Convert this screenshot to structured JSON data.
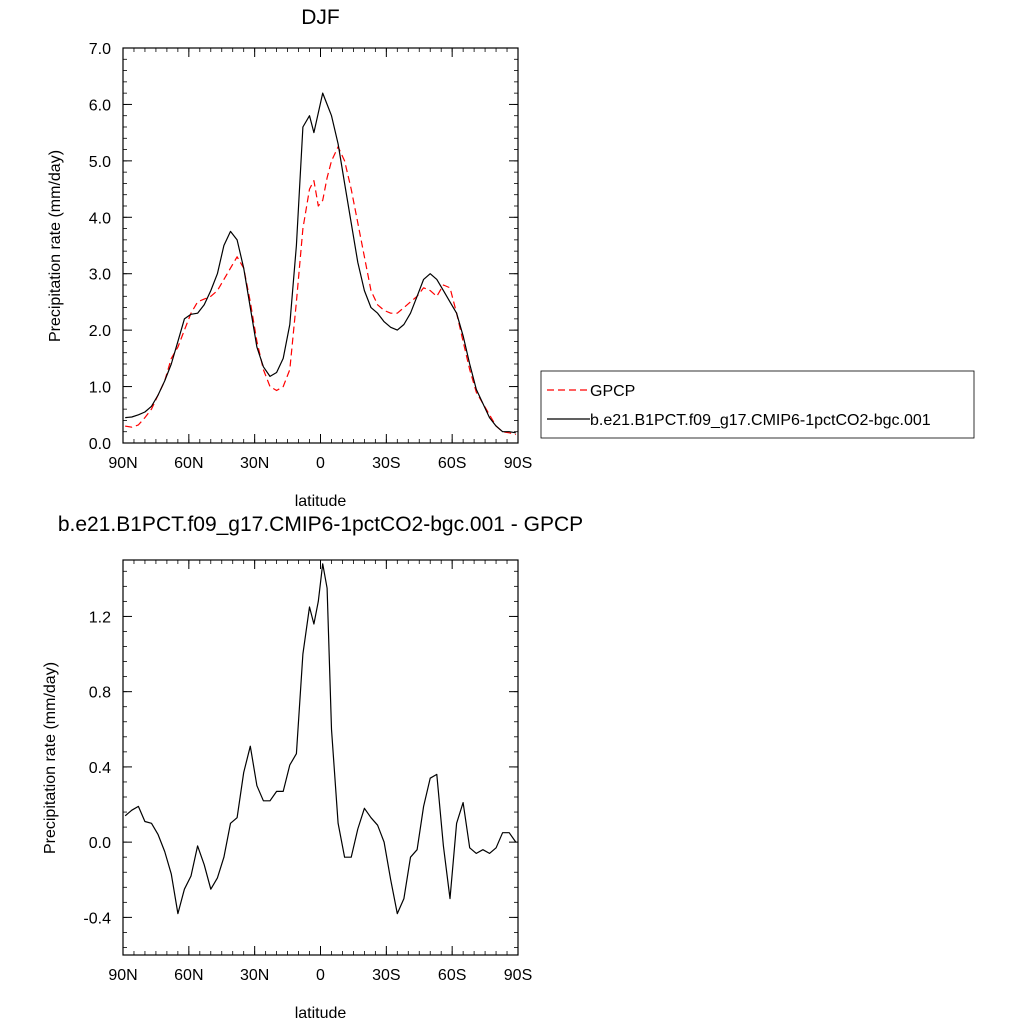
{
  "chart_data": [
    {
      "type": "line",
      "title": "DJF",
      "xlabel": "latitude",
      "ylabel": "Precipitation rate (mm/day)",
      "xlim": [
        -90,
        90
      ],
      "ylim": [
        0,
        7
      ],
      "xticks": [
        -90,
        -60,
        -30,
        0,
        30,
        60,
        90
      ],
      "xtick_labels": [
        "90N",
        "60N",
        "30N",
        "0",
        "30S",
        "60S",
        "90S"
      ],
      "yticks": [
        0,
        1,
        2,
        3,
        4,
        5,
        6,
        7
      ],
      "ytick_labels": [
        "0.0",
        "1.0",
        "2.0",
        "3.0",
        "4.0",
        "5.0",
        "6.0",
        "7.0"
      ],
      "legend_position": "right",
      "series": [
        {
          "name": "GPCP",
          "color": "#ff0000",
          "dashed": true,
          "x": [
            -89,
            -86,
            -83,
            -80,
            -77,
            -74,
            -71,
            -68,
            -65,
            -62,
            -59,
            -56,
            -53,
            -50,
            -47,
            -44,
            -41,
            -38,
            -35,
            -32,
            -29,
            -26,
            -23,
            -20,
            -17,
            -14,
            -11,
            -8,
            -5,
            -3,
            -1,
            1,
            3,
            5,
            8,
            11,
            14,
            17,
            20,
            23,
            26,
            29,
            32,
            35,
            38,
            41,
            44,
            47,
            50,
            53,
            56,
            59,
            62,
            65,
            68,
            71,
            74,
            77,
            80,
            83,
            86,
            89
          ],
          "y": [
            0.3,
            0.28,
            0.32,
            0.45,
            0.6,
            0.85,
            1.1,
            1.5,
            1.7,
            2.0,
            2.3,
            2.5,
            2.55,
            2.6,
            2.7,
            2.9,
            3.1,
            3.3,
            3.1,
            2.5,
            1.8,
            1.3,
            1.0,
            0.93,
            1.0,
            1.3,
            2.5,
            3.8,
            4.5,
            4.65,
            4.2,
            4.3,
            4.7,
            5.0,
            5.25,
            5.0,
            4.5,
            3.9,
            3.3,
            2.7,
            2.45,
            2.35,
            2.3,
            2.3,
            2.4,
            2.5,
            2.6,
            2.75,
            2.7,
            2.6,
            2.8,
            2.75,
            2.3,
            1.8,
            1.3,
            0.9,
            0.7,
            0.5,
            0.3,
            0.2,
            0.18,
            0.15
          ]
        },
        {
          "name": "b.e21.B1PCT.f09_g17.CMIP6-1pctCO2-bgc.001",
          "color": "#000000",
          "dashed": false,
          "x": [
            -89,
            -86,
            -83,
            -80,
            -77,
            -74,
            -71,
            -68,
            -65,
            -62,
            -59,
            -56,
            -53,
            -50,
            -47,
            -44,
            -41,
            -38,
            -35,
            -32,
            -29,
            -26,
            -23,
            -20,
            -17,
            -14,
            -11,
            -8,
            -5,
            -3,
            -1,
            1,
            3,
            5,
            8,
            11,
            14,
            17,
            20,
            23,
            26,
            29,
            32,
            35,
            38,
            41,
            44,
            47,
            50,
            53,
            56,
            59,
            62,
            65,
            68,
            71,
            74,
            77,
            80,
            83,
            86,
            89
          ],
          "y": [
            0.45,
            0.46,
            0.5,
            0.55,
            0.65,
            0.85,
            1.1,
            1.4,
            1.8,
            2.2,
            2.28,
            2.3,
            2.45,
            2.7,
            3.0,
            3.5,
            3.75,
            3.6,
            3.1,
            2.4,
            1.7,
            1.35,
            1.18,
            1.25,
            1.5,
            2.1,
            3.5,
            5.6,
            5.8,
            5.5,
            5.85,
            6.2,
            6.0,
            5.8,
            5.3,
            4.6,
            3.9,
            3.2,
            2.7,
            2.4,
            2.3,
            2.15,
            2.05,
            2.0,
            2.1,
            2.3,
            2.6,
            2.9,
            3.0,
            2.9,
            2.7,
            2.5,
            2.3,
            1.9,
            1.4,
            0.95,
            0.7,
            0.45,
            0.3,
            0.2,
            0.2,
            0.18
          ]
        }
      ]
    },
    {
      "type": "line",
      "title": "b.e21.B1PCT.f09_g17.CMIP6-1pctCO2-bgc.001 - GPCP",
      "xlabel": "latitude",
      "ylabel": "Precipitation rate (mm/day)",
      "xlim": [
        -90,
        90
      ],
      "ylim": [
        -0.6,
        1.5
      ],
      "xticks": [
        -90,
        -60,
        -30,
        0,
        30,
        60,
        90
      ],
      "xtick_labels": [
        "90N",
        "60N",
        "30N",
        "0",
        "30S",
        "60S",
        "90S"
      ],
      "yticks": [
        -0.4,
        0,
        0.4,
        0.8,
        1.2
      ],
      "ytick_labels": [
        "-0.4",
        "0.0",
        "0.4",
        "0.8",
        "1.2"
      ],
      "series": [
        {
          "color": "#000000",
          "x": [
            -89,
            -86,
            -83,
            -80,
            -77,
            -74,
            -71,
            -68,
            -65,
            -62,
            -59,
            -56,
            -53,
            -50,
            -47,
            -44,
            -41,
            -38,
            -35,
            -32,
            -29,
            -26,
            -23,
            -20,
            -17,
            -14,
            -11,
            -8,
            -5,
            -3,
            -1,
            1,
            3,
            5,
            8,
            11,
            14,
            17,
            20,
            23,
            26,
            29,
            32,
            35,
            38,
            41,
            44,
            47,
            50,
            53,
            56,
            59,
            62,
            65,
            68,
            71,
            74,
            77,
            80,
            83,
            86,
            89
          ],
          "y": [
            0.14,
            0.17,
            0.19,
            0.11,
            0.1,
            0.04,
            -0.05,
            -0.17,
            -0.38,
            -0.25,
            -0.18,
            -0.02,
            -0.12,
            -0.25,
            -0.19,
            -0.08,
            0.1,
            0.13,
            0.37,
            0.51,
            0.3,
            0.22,
            0.22,
            0.27,
            0.27,
            0.41,
            0.47,
            1.0,
            1.25,
            1.16,
            1.28,
            1.48,
            1.35,
            0.6,
            0.1,
            -0.08,
            -0.08,
            0.07,
            0.18,
            0.13,
            0.09,
            0.0,
            -0.2,
            -0.38,
            -0.3,
            -0.08,
            -0.04,
            0.19,
            0.34,
            0.36,
            -0.02,
            -0.3,
            0.1,
            0.21,
            -0.03,
            -0.06,
            -0.04,
            -0.06,
            -0.03,
            0.05,
            0.05,
            0.0
          ]
        }
      ]
    }
  ]
}
